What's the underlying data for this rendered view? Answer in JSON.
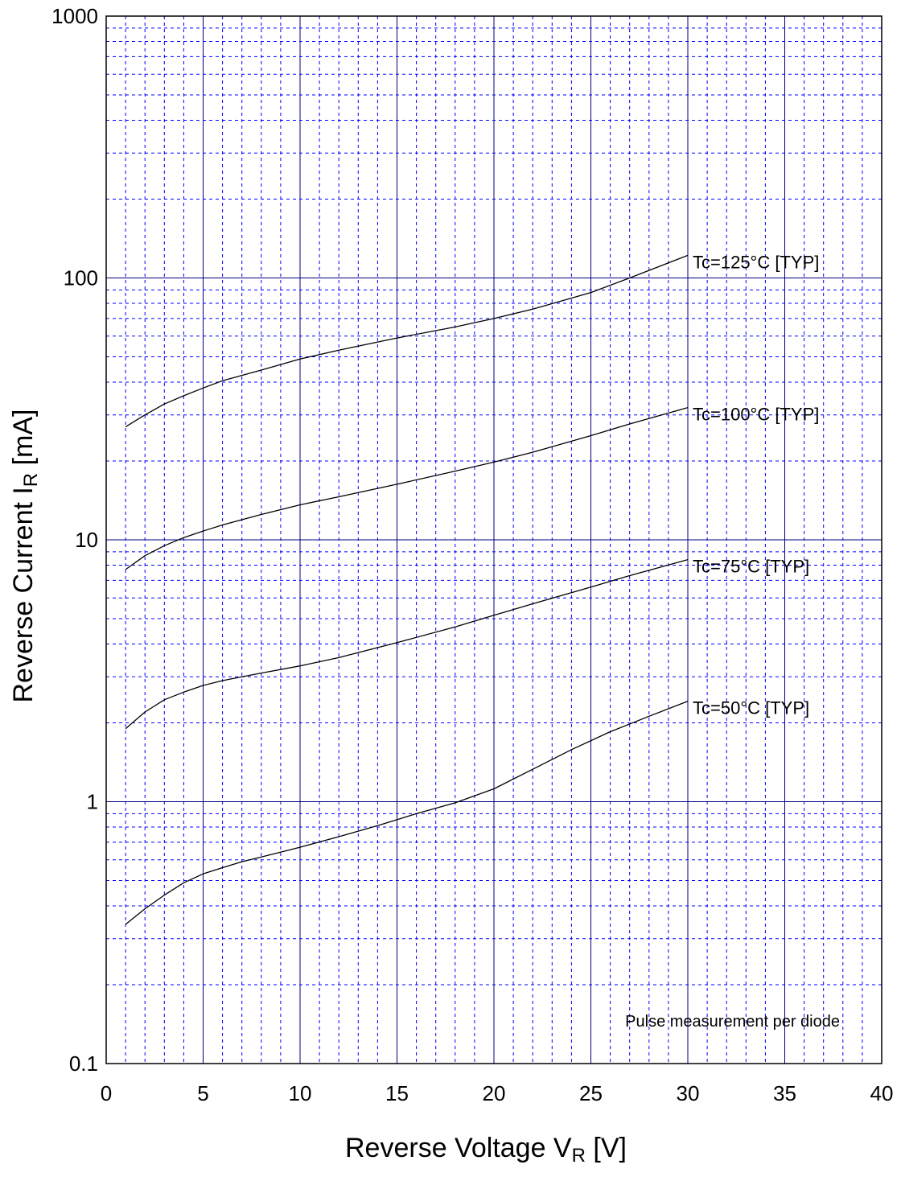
{
  "chart_data": {
    "type": "line",
    "xlabel": {
      "main": "Reverse Voltage  V",
      "sub": "R",
      "unit": "  [V]"
    },
    "ylabel": {
      "main": "Reverse Current  I",
      "sub": "R",
      "unit": "  [mA]"
    },
    "xlim": [
      0,
      40
    ],
    "ylim": [
      0.1,
      1000
    ],
    "yscale": "log",
    "x_ticks": [
      "0",
      "5",
      "10",
      "15",
      "20",
      "25",
      "30",
      "35",
      "40"
    ],
    "y_ticks": [
      "0.1",
      "1",
      "10",
      "100",
      "1000"
    ],
    "grid": true,
    "note": "Pulse measurement per diode",
    "colors": {
      "grid_major": "#000080",
      "grid_minor": "#0000ff",
      "curve": "#000000"
    },
    "series": [
      {
        "name": "Tc=125°C  [TYP]",
        "x": [
          1,
          2,
          3,
          4,
          5,
          6,
          8,
          10,
          12,
          15,
          18,
          20,
          22,
          25,
          27,
          30
        ],
        "y": [
          27,
          30,
          33,
          35.5,
          38,
          40.5,
          44.5,
          49,
          53,
          59,
          65,
          70,
          76,
          88,
          100,
          122
        ]
      },
      {
        "name": "Tc=100°C  [TYP]",
        "x": [
          1,
          2,
          3,
          4,
          5,
          6,
          8,
          10,
          12,
          15,
          18,
          20,
          22,
          25,
          27,
          30
        ],
        "y": [
          7.7,
          8.7,
          9.5,
          10.2,
          10.8,
          11.4,
          12.5,
          13.6,
          14.6,
          16.3,
          18.3,
          19.8,
          21.6,
          25,
          27.7,
          32
        ]
      },
      {
        "name": "Tc=75°C  [TYP]",
        "x": [
          1,
          2,
          3,
          4,
          5,
          6,
          7,
          8,
          10,
          12,
          15,
          18,
          20,
          22,
          25,
          27,
          30
        ],
        "y": [
          1.9,
          2.2,
          2.45,
          2.62,
          2.78,
          2.9,
          3.0,
          3.1,
          3.3,
          3.55,
          4.05,
          4.65,
          5.15,
          5.7,
          6.6,
          7.3,
          8.4
        ]
      },
      {
        "name": "Tc=50°C  [TYP]",
        "x": [
          1,
          2,
          3,
          4,
          5,
          6,
          7,
          8,
          10,
          12,
          14,
          16,
          18,
          20,
          22,
          24,
          26,
          28,
          30
        ],
        "y": [
          0.34,
          0.39,
          0.44,
          0.49,
          0.53,
          0.56,
          0.59,
          0.615,
          0.67,
          0.735,
          0.81,
          0.9,
          0.99,
          1.12,
          1.33,
          1.58,
          1.85,
          2.12,
          2.42
        ]
      }
    ]
  }
}
